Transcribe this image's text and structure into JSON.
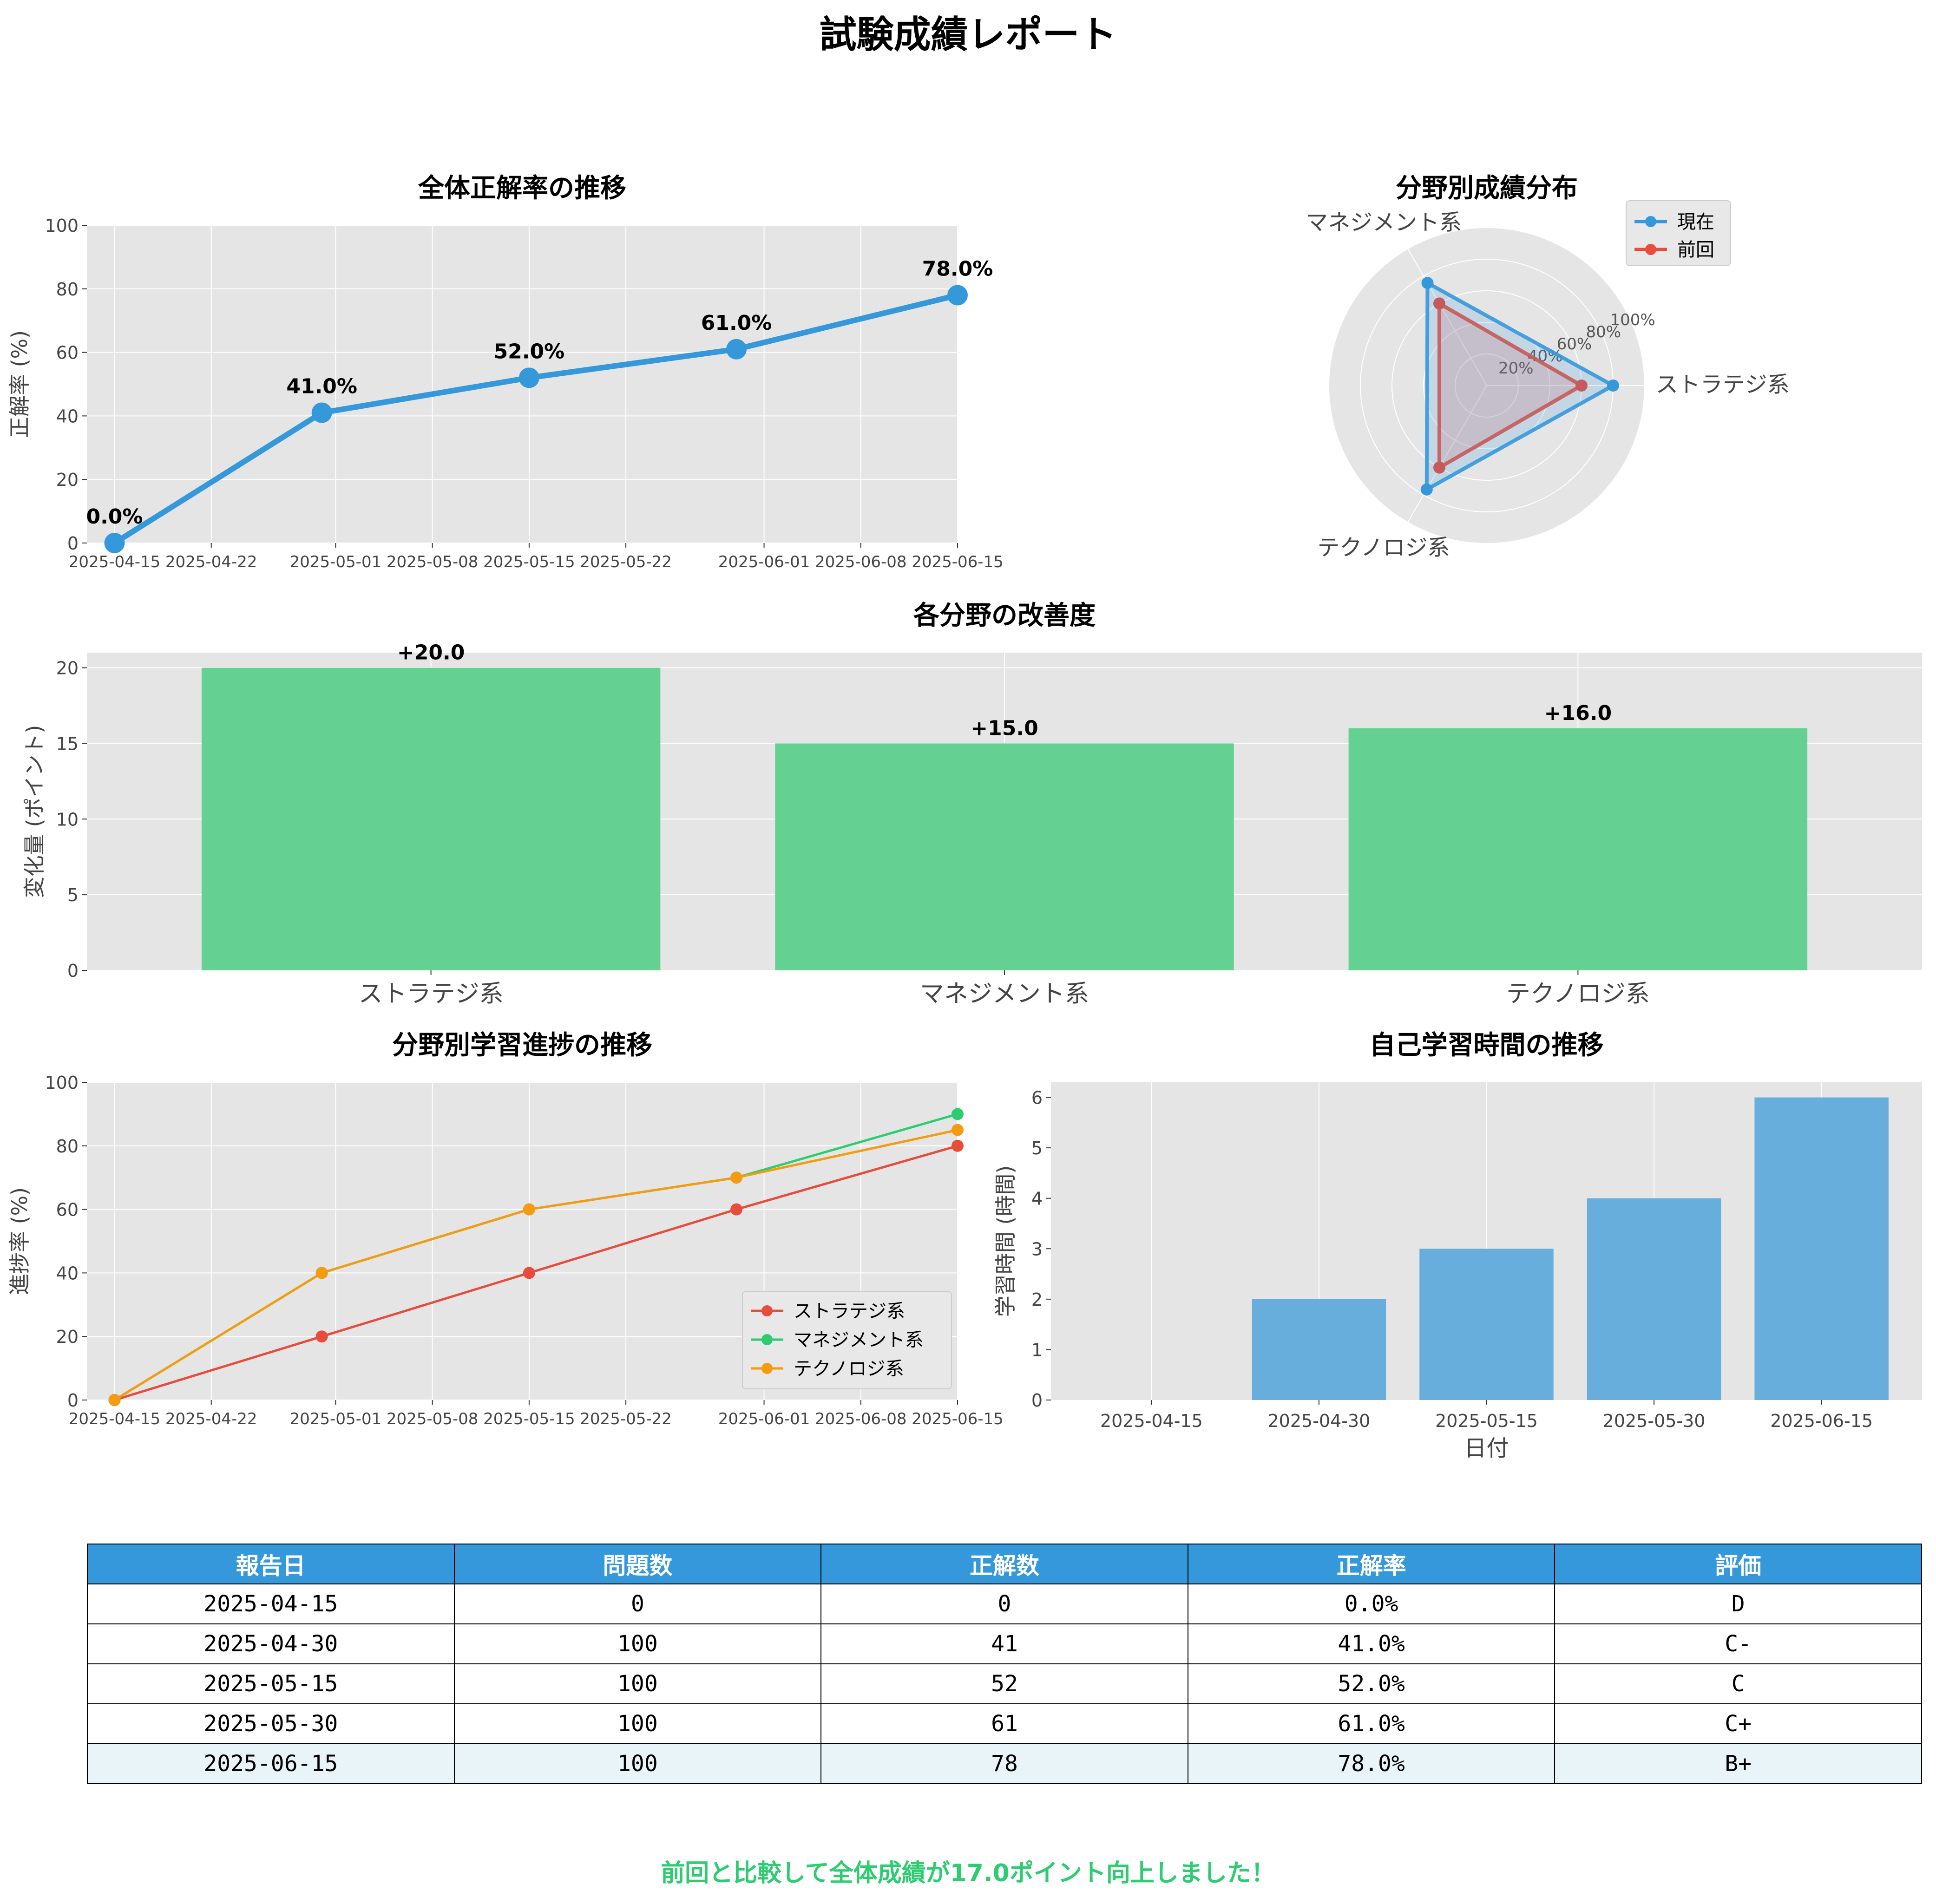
{
  "report_title": "試験成績レポート",
  "footer_message": "前回と比較して全体成績が17.0ポイント向上しました！",
  "colors": {
    "primary": "#3498db",
    "red": "#e74c3c",
    "green": "#2ecc71",
    "orange": "#f39c12",
    "bar_green": "#64d193",
    "bar_blue": "#68aedc",
    "plot_bg": "#e5e5e5"
  },
  "chart_data": [
    {
      "id": "overall",
      "type": "line",
      "title": "全体正解率の推移",
      "ylabel": "正解率 (%)",
      "ylim": [
        0,
        100
      ],
      "yticks": [
        0,
        20,
        40,
        60,
        80,
        100
      ],
      "xticks": [
        "2025-04-15",
        "2025-04-22",
        "2025-05-01",
        "2025-05-08",
        "2025-05-15",
        "2025-05-22",
        "2025-06-01",
        "2025-06-08",
        "2025-06-15"
      ],
      "xlim": [
        "2025-04-13",
        "2025-06-15"
      ],
      "x": [
        "2025-04-15",
        "2025-04-30",
        "2025-05-15",
        "2025-05-30",
        "2025-06-15"
      ],
      "values": [
        0,
        41,
        52,
        61,
        78
      ],
      "labels": [
        "0.0%",
        "41.0%",
        "52.0%",
        "61.0%",
        "78.0%"
      ],
      "grid": true
    },
    {
      "id": "radar",
      "type": "radar",
      "title": "分野別成績分布",
      "categories": [
        "ストラテジ系",
        "マネジメント系",
        "テクノロジ系"
      ],
      "rticks": [
        "20%",
        "40%",
        "60%",
        "80%",
        "100%"
      ],
      "rlim": [
        0,
        100
      ],
      "series": [
        {
          "name": "現在",
          "values": [
            80,
            75,
            76
          ],
          "color": "#3498db"
        },
        {
          "name": "前回",
          "values": [
            60,
            60,
            60
          ],
          "color": "#e74c3c"
        }
      ],
      "legend": "top-right"
    },
    {
      "id": "improvement",
      "type": "bar",
      "title": "各分野の改善度",
      "ylabel": "変化量 (ポイント)",
      "ylim": [
        0,
        21
      ],
      "yticks": [
        0,
        5,
        10,
        15,
        20
      ],
      "categories": [
        "ストラテジ系",
        "マネジメント系",
        "テクノロジ系"
      ],
      "values": [
        20,
        15,
        16
      ],
      "labels": [
        "+20.0",
        "+15.0",
        "+16.0"
      ],
      "grid": true
    },
    {
      "id": "progress",
      "type": "line",
      "title": "分野別学習進捗の推移",
      "ylabel": "進捗率 (%)",
      "ylim": [
        0,
        100
      ],
      "yticks": [
        0,
        20,
        40,
        60,
        80,
        100
      ],
      "xticks": [
        "2025-04-15",
        "2025-04-22",
        "2025-05-01",
        "2025-05-08",
        "2025-05-15",
        "2025-05-22",
        "2025-06-01",
        "2025-06-08",
        "2025-06-15"
      ],
      "xlim": [
        "2025-04-13",
        "2025-06-15"
      ],
      "x": [
        "2025-04-15",
        "2025-04-30",
        "2025-05-15",
        "2025-05-30",
        "2025-06-15"
      ],
      "series": [
        {
          "name": "ストラテジ系",
          "values": [
            0,
            20,
            40,
            60,
            80
          ],
          "color": "#e74c3c"
        },
        {
          "name": "マネジメント系",
          "values": [
            0,
            40,
            60,
            70,
            90
          ],
          "color": "#2ecc71"
        },
        {
          "name": "テクノロジ系",
          "values": [
            0,
            40,
            60,
            70,
            85
          ],
          "color": "#f39c12"
        }
      ],
      "legend": "lower-right",
      "grid": true
    },
    {
      "id": "study",
      "type": "bar",
      "title": "自己学習時間の推移",
      "xlabel": "日付",
      "ylabel": "学習時間 (時間)",
      "ylim": [
        0,
        6.3
      ],
      "yticks": [
        0,
        1,
        2,
        3,
        4,
        5,
        6
      ],
      "categories": [
        "2025-04-15",
        "2025-04-30",
        "2025-05-15",
        "2025-05-30",
        "2025-06-15"
      ],
      "values": [
        0,
        2,
        3,
        4,
        6
      ],
      "grid": true
    },
    {
      "id": "table",
      "type": "table",
      "columns": [
        "報告日",
        "問題数",
        "正解数",
        "正解率",
        "評価"
      ],
      "rows": [
        [
          "2025-04-15",
          "0",
          "0",
          "0.0%",
          "D"
        ],
        [
          "2025-04-30",
          "100",
          "41",
          "41.0%",
          "C-"
        ],
        [
          "2025-05-15",
          "100",
          "52",
          "52.0%",
          "C"
        ],
        [
          "2025-05-30",
          "100",
          "61",
          "61.0%",
          "C+"
        ],
        [
          "2025-06-15",
          "100",
          "78",
          "78.0%",
          "B+"
        ]
      ],
      "highlight_row": 4
    }
  ]
}
